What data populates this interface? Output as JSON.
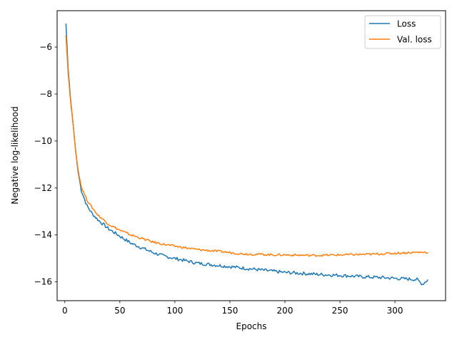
{
  "chart_data": {
    "type": "line",
    "title": "",
    "xlabel": "Epochs",
    "ylabel": "Negative log-likelihood",
    "xlim": [
      -7,
      346
    ],
    "ylim": [
      -16.8,
      -4.45
    ],
    "xticks": [
      0,
      50,
      100,
      150,
      200,
      250,
      300
    ],
    "yticks": [
      -16,
      -14,
      -12,
      -10,
      -8,
      -6
    ],
    "grid": false,
    "legend_position": "top-right",
    "series": [
      {
        "name": "Loss",
        "color": "#1f77b4",
        "x": [
          1,
          3,
          5,
          8,
          10,
          12,
          15,
          20,
          25,
          30,
          40,
          50,
          60,
          70,
          80,
          90,
          100,
          110,
          120,
          130,
          140,
          150,
          160,
          170,
          180,
          190,
          200,
          210,
          220,
          230,
          240,
          250,
          260,
          270,
          280,
          290,
          300,
          310,
          320,
          325,
          330
        ],
        "y": [
          -5.0,
          -6.9,
          -8.1,
          -9.5,
          -10.5,
          -11.3,
          -12.1,
          -12.75,
          -13.1,
          -13.35,
          -13.75,
          -14.05,
          -14.35,
          -14.55,
          -14.75,
          -14.9,
          -15.0,
          -15.1,
          -15.2,
          -15.25,
          -15.3,
          -15.35,
          -15.4,
          -15.45,
          -15.5,
          -15.55,
          -15.6,
          -15.62,
          -15.65,
          -15.68,
          -15.7,
          -15.72,
          -15.75,
          -15.78,
          -15.8,
          -15.82,
          -15.85,
          -15.87,
          -15.9,
          -16.1,
          -15.9
        ]
      },
      {
        "name": "Val. loss",
        "color": "#ff7f0e",
        "x": [
          1,
          3,
          5,
          8,
          10,
          12,
          15,
          20,
          25,
          30,
          40,
          50,
          60,
          70,
          80,
          90,
          100,
          110,
          120,
          130,
          140,
          150,
          160,
          170,
          180,
          190,
          200,
          210,
          220,
          230,
          240,
          250,
          260,
          270,
          280,
          290,
          300,
          310,
          320,
          330
        ],
        "y": [
          -5.5,
          -7.1,
          -8.2,
          -9.5,
          -10.5,
          -11.2,
          -11.95,
          -12.5,
          -12.85,
          -13.15,
          -13.55,
          -13.8,
          -14.0,
          -14.15,
          -14.3,
          -14.4,
          -14.48,
          -14.55,
          -14.62,
          -14.66,
          -14.7,
          -14.75,
          -14.8,
          -14.82,
          -14.83,
          -14.85,
          -14.85,
          -14.86,
          -14.87,
          -14.87,
          -14.86,
          -14.85,
          -14.84,
          -14.83,
          -14.82,
          -14.8,
          -14.78,
          -14.76,
          -14.74,
          -14.74
        ]
      }
    ]
  }
}
